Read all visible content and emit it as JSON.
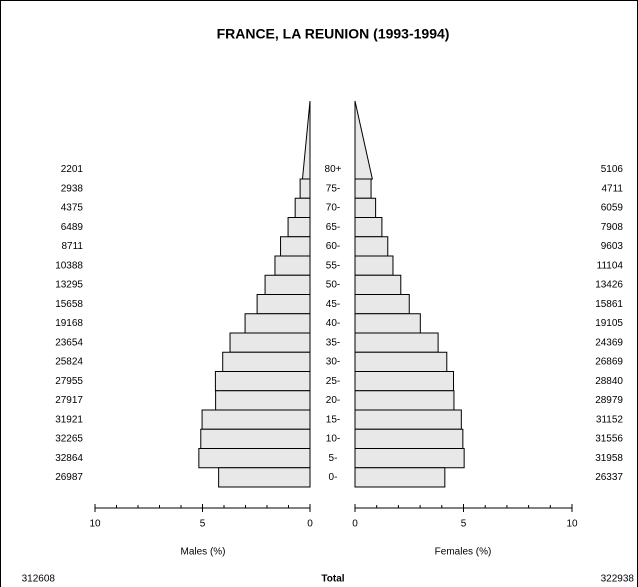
{
  "chart_data": {
    "type": "pyramid",
    "title": "FRANCE, LA REUNION (1993-1994)",
    "categories": [
      "80+",
      "75-",
      "70-",
      "65-",
      "60-",
      "55-",
      "50-",
      "45-",
      "40-",
      "35-",
      "30-",
      "25-",
      "20-",
      "15-",
      "10-",
      "5-",
      "0-"
    ],
    "series": [
      {
        "name": "Males (%)",
        "color": "#e8e8e8",
        "values": [
          0.35,
          0.46,
          0.69,
          1.02,
          1.37,
          1.63,
          2.09,
          2.46,
          3.02,
          3.72,
          4.06,
          4.4,
          4.39,
          5.02,
          5.08,
          5.17,
          4.25
        ],
        "counts": [
          2201,
          2938,
          4375,
          6489,
          8711,
          10388,
          13295,
          15658,
          19168,
          23654,
          25824,
          27955,
          27917,
          31921,
          32265,
          32864,
          26987
        ],
        "total": 312608
      },
      {
        "name": "Females (%)",
        "color": "#e8e8e8",
        "values": [
          0.8,
          0.74,
          0.95,
          1.24,
          1.51,
          1.75,
          2.11,
          2.5,
          3.01,
          3.83,
          4.23,
          4.54,
          4.56,
          4.9,
          4.97,
          5.03,
          4.14
        ],
        "counts": [
          5106,
          4711,
          6059,
          7908,
          9603,
          11104,
          13426,
          15861,
          19105,
          24369,
          26869,
          28840,
          28979,
          31152,
          31556,
          31958,
          26337
        ],
        "total": 322938
      }
    ],
    "total_label": "Total",
    "xlim": [
      0,
      10
    ],
    "xticks": [
      0,
      5,
      10
    ],
    "xminorticks": [
      1,
      2,
      3,
      4,
      6,
      7,
      8,
      9
    ]
  }
}
